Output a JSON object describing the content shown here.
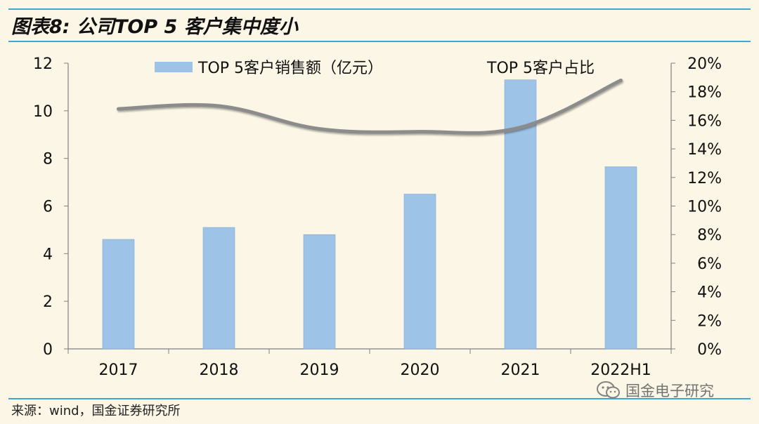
{
  "figure_title": "图表8: 公司TOP 5 客户集中度小",
  "source_text": "来源：wind，国金证券研究所",
  "watermark_text": "国金电子研究",
  "colors": {
    "background": "#FBF6E5",
    "rule": "#3AA9D4",
    "bar": "#9DC3E6",
    "line": "#8C8C8C"
  },
  "chart_data": {
    "type": "bar",
    "categories": [
      "2017",
      "2018",
      "2019",
      "2020",
      "2021",
      "2022H1"
    ],
    "series": [
      {
        "name": "TOP 5客户销售额（亿元）",
        "type": "bar",
        "axis": "left",
        "values": [
          4.6,
          5.1,
          4.8,
          6.5,
          11.3,
          7.65
        ]
      },
      {
        "name": "TOP 5客户占比",
        "type": "line",
        "axis": "right",
        "values": [
          0.168,
          0.17,
          0.154,
          0.152,
          0.155,
          0.188
        ]
      }
    ],
    "y_left": {
      "min": 0,
      "max": 12,
      "ticks": [
        "0",
        "2",
        "4",
        "6",
        "8",
        "10",
        "12"
      ]
    },
    "y_right": {
      "min": 0,
      "max": 0.2,
      "ticks": [
        "0%",
        "2%",
        "4%",
        "6%",
        "8%",
        "10%",
        "12%",
        "14%",
        "16%",
        "18%",
        "20%"
      ]
    },
    "legend_position": "top",
    "grid": false
  }
}
